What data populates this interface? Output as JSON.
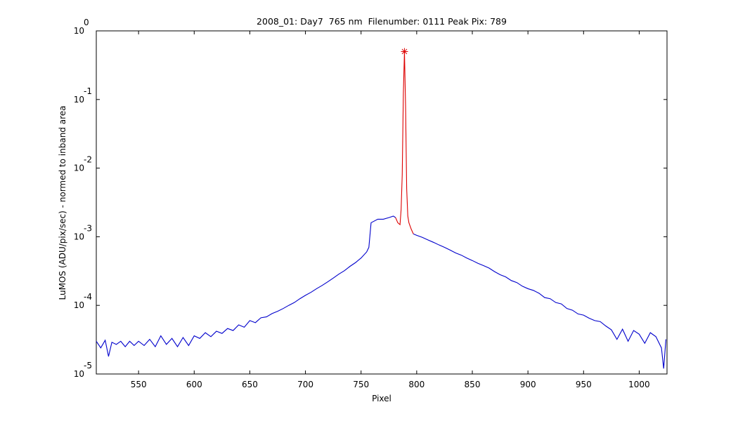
{
  "chart_data": {
    "type": "line",
    "title": "2008_01: Day7  765 nm  Filenumber: 0111 Peak Pix: 789",
    "xlabel": "Pixel",
    "ylabel": "LuMOS (ADU/pix/sec) - normed to inband area",
    "yscale": "log",
    "xlim": [
      512,
      1025
    ],
    "ylim": [
      1e-05,
      1
    ],
    "xticks": [
      550,
      600,
      650,
      700,
      750,
      800,
      850,
      900,
      950,
      1000
    ],
    "yticks": [
      {
        "value": 1,
        "label": "10",
        "exponent": "0"
      },
      {
        "value": 0.1,
        "label": "10",
        "exponent": "-1"
      },
      {
        "value": 0.01,
        "label": "10",
        "exponent": "-2"
      },
      {
        "value": 0.001,
        "label": "10",
        "exponent": "-3"
      },
      {
        "value": 0.0001,
        "label": "10",
        "exponent": "-4"
      },
      {
        "value": 1e-05,
        "label": "10",
        "exponent": "-5"
      }
    ],
    "series": [
      {
        "color": "#0000cc",
        "style": "line",
        "x": [
          512,
          516,
          520,
          523,
          526,
          530,
          534,
          538,
          542,
          546,
          550,
          555,
          560,
          565,
          570,
          575,
          580,
          585,
          590,
          595,
          600,
          605,
          610,
          615,
          620,
          625,
          630,
          635,
          640,
          645,
          650,
          655,
          660,
          665,
          670,
          675,
          680,
          685,
          690,
          695,
          700,
          705,
          710,
          715,
          720,
          725,
          730,
          735,
          740,
          745,
          750,
          755,
          757,
          759,
          765,
          770,
          775,
          779,
          781,
          788,
          797,
          800,
          805,
          810,
          815,
          820,
          825,
          830,
          835,
          840,
          845,
          850,
          855,
          860,
          865,
          870,
          875,
          880,
          885,
          890,
          895,
          900,
          905,
          910,
          915,
          920,
          925,
          930,
          935,
          940,
          945,
          950,
          955,
          960,
          965,
          970,
          975,
          980,
          985,
          990,
          995,
          1000,
          1005,
          1010,
          1015,
          1020,
          1022,
          1024
        ],
        "values": [
          3e-05,
          2.4e-05,
          3.1e-05,
          1.8e-05,
          2.9e-05,
          2.7e-05,
          3e-05,
          2.5e-05,
          3e-05,
          2.6e-05,
          3e-05,
          2.6e-05,
          3.2e-05,
          2.5e-05,
          3.6e-05,
          2.7e-05,
          3.3e-05,
          2.5e-05,
          3.4e-05,
          2.6e-05,
          3.6e-05,
          3.3e-05,
          4e-05,
          3.5e-05,
          4.2e-05,
          3.9e-05,
          4.6e-05,
          4.3e-05,
          5.2e-05,
          4.8e-05,
          6e-05,
          5.6e-05,
          6.6e-05,
          6.8e-05,
          7.6e-05,
          8.2e-05,
          9e-05,
          0.0001,
          0.00011,
          0.000125,
          0.00014,
          0.000155,
          0.000175,
          0.000195,
          0.00022,
          0.00025,
          0.000285,
          0.00032,
          0.00037,
          0.00042,
          0.00049,
          0.0006,
          0.0007,
          0.0016,
          0.0018,
          0.0018,
          0.0019,
          0.002,
          0.0019,
          null,
          0.0011,
          0.00105,
          0.00098,
          0.0009,
          0.00083,
          0.00076,
          0.0007,
          0.00064,
          0.00058,
          0.00054,
          0.00049,
          0.00045,
          0.00041,
          0.00038,
          0.00035,
          0.00031,
          0.00028,
          0.00026,
          0.00023,
          0.000215,
          0.00019,
          0.000175,
          0.000165,
          0.00015,
          0.00013,
          0.000125,
          0.00011,
          0.000105,
          9e-05,
          8.5e-05,
          7.5e-05,
          7.2e-05,
          6.5e-05,
          6e-05,
          5.8e-05,
          5e-05,
          4.4e-05,
          3.2e-05,
          4.5e-05,
          3e-05,
          4.3e-05,
          3.8e-05,
          2.8e-05,
          4e-05,
          3.5e-05,
          2.4e-05,
          1.2e-05,
          3.2e-05
        ]
      },
      {
        "color": "#dd0000",
        "style": "line",
        "x": [
          781,
          783,
          785,
          786,
          787,
          788,
          789,
          790,
          791,
          792,
          793,
          795,
          797
        ],
        "values": [
          0.0019,
          0.0016,
          0.0015,
          0.0025,
          0.008,
          0.12,
          0.5,
          0.08,
          0.005,
          0.002,
          0.0016,
          0.0013,
          0.0011
        ]
      },
      {
        "color": "#dd0000",
        "style": "marker",
        "x": [
          789
        ],
        "values": [
          0.5
        ]
      }
    ]
  }
}
